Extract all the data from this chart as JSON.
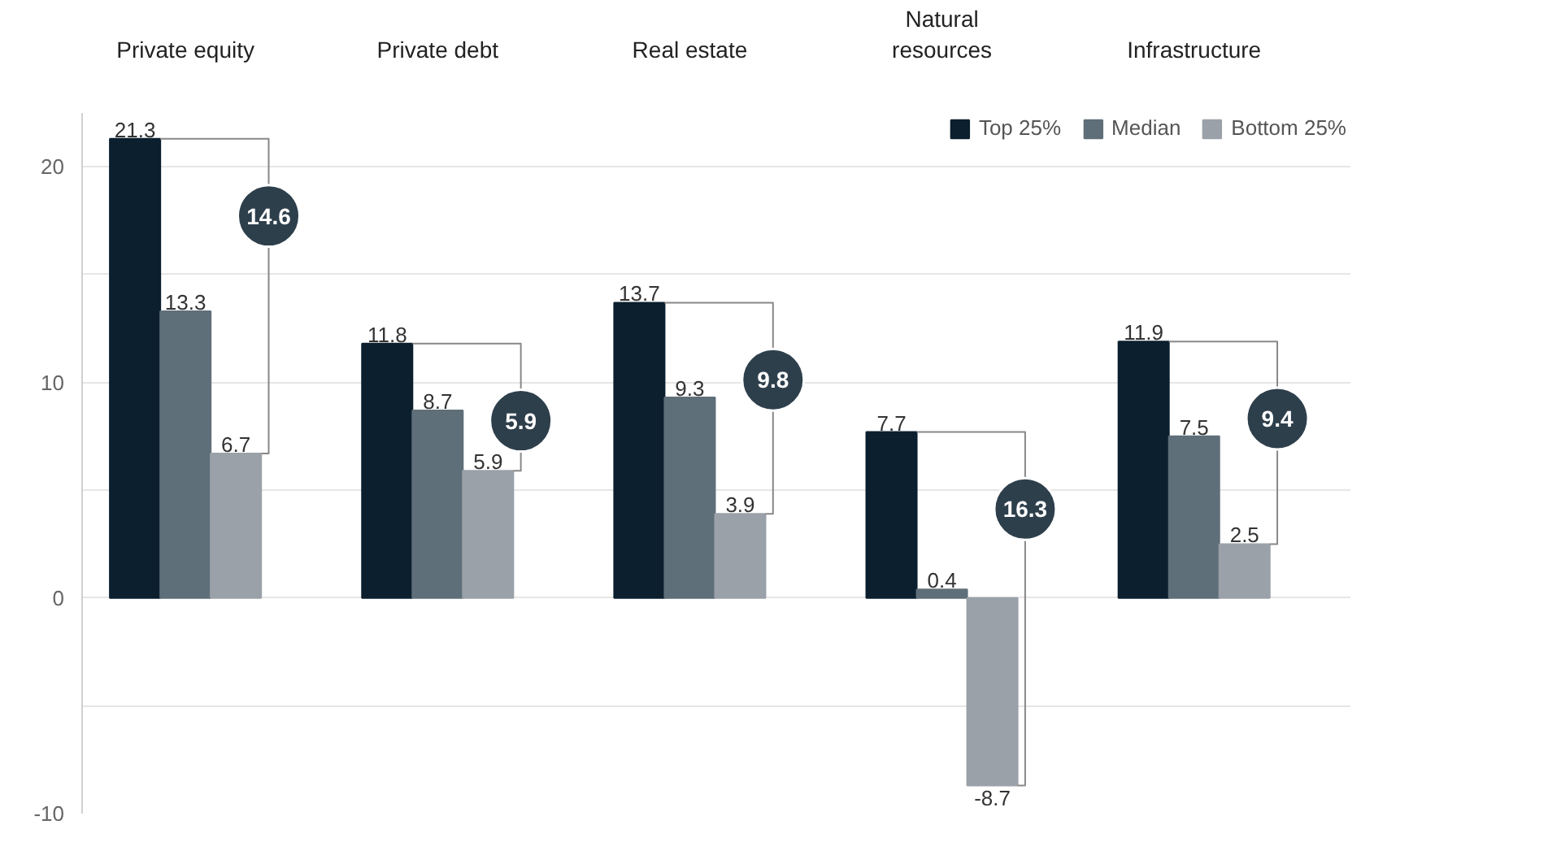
{
  "chart_data": {
    "type": "bar",
    "categories": [
      "Private equity",
      "Private debt",
      "Real estate",
      "Natural resources",
      "Infrastructure"
    ],
    "series": [
      {
        "name": "Top 25%",
        "color": "#0b1f2e",
        "values": [
          21.3,
          11.8,
          13.7,
          7.7,
          11.9
        ]
      },
      {
        "name": "Median",
        "color": "#5f6f7a",
        "values": [
          13.3,
          8.7,
          9.3,
          0.4,
          7.5
        ]
      },
      {
        "name": "Bottom 25%",
        "color": "#9aa1a8",
        "values": [
          6.7,
          5.9,
          3.9,
          -8.7,
          2.5
        ]
      }
    ],
    "ylim": [
      -10,
      22.5
    ],
    "yticks": [
      -10,
      {
        "value": -5,
        "label": null
      },
      0,
      {
        "value": 5,
        "label": null
      },
      10,
      {
        "value": 15,
        "label": null
      },
      20
    ],
    "annotations": [
      "14.6",
      "5.9",
      "9.8",
      "16.3",
      "9.4"
    ],
    "data_labels": true,
    "grid": "y",
    "legend": "top right"
  }
}
